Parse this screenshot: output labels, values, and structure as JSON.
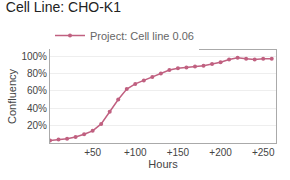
{
  "chart_data": {
    "type": "line",
    "title": "Cell Line: CHO-K1",
    "xlabel": "Hours",
    "ylabel": "Confluency",
    "x": [
      0,
      10,
      20,
      30,
      40,
      50,
      60,
      70,
      80,
      90,
      100,
      110,
      120,
      130,
      140,
      150,
      160,
      170,
      180,
      190,
      200,
      210,
      220,
      230,
      240,
      250,
      260
    ],
    "series": [
      {
        "name": "Project: Cell line 0.06",
        "color": "#c06080",
        "marker": "circle",
        "values": [
          0.03,
          0.04,
          0.05,
          0.07,
          0.1,
          0.14,
          0.22,
          0.36,
          0.5,
          0.62,
          0.68,
          0.72,
          0.76,
          0.8,
          0.84,
          0.86,
          0.87,
          0.88,
          0.89,
          0.91,
          0.93,
          0.96,
          0.98,
          0.97,
          0.96,
          0.97,
          0.97
        ]
      }
    ],
    "xlim": [
      0,
      265
    ],
    "xticks": [
      {
        "value": 50,
        "label": "+50"
      },
      {
        "value": 100,
        "label": "+100"
      },
      {
        "value": 150,
        "label": "+150"
      },
      {
        "value": 200,
        "label": "+200"
      },
      {
        "value": 250,
        "label": "+250"
      }
    ],
    "ylim": [
      0,
      1.07
    ],
    "yticks": [
      {
        "value": 0.2,
        "label": "20%"
      },
      {
        "value": 0.4,
        "label": "40%"
      },
      {
        "value": 0.6,
        "label": "60%"
      },
      {
        "value": 0.8,
        "label": "80%"
      },
      {
        "value": 1.0,
        "label": "100%"
      }
    ],
    "grid": "y",
    "legend": "top"
  }
}
